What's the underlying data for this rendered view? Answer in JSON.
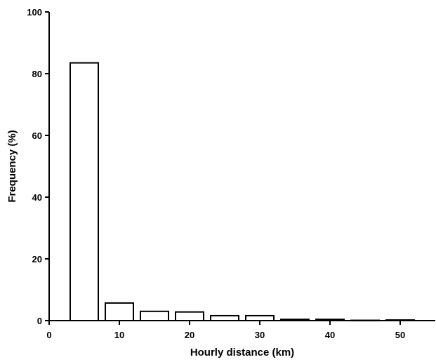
{
  "chart_data": {
    "type": "bar",
    "title": "",
    "xlabel": "Hourly distance (km)",
    "ylabel": "Frequency (%)",
    "x_centers": [
      5,
      10,
      15,
      20,
      25,
      30,
      35,
      40,
      45,
      50
    ],
    "values": [
      83.5,
      5.7,
      3.0,
      2.8,
      1.6,
      1.6,
      0.4,
      0.4,
      0.1,
      0.2
    ],
    "bar_width": 4,
    "xlim": [
      0,
      55
    ],
    "ylim": [
      0,
      100
    ],
    "xticks": [
      0,
      10,
      20,
      30,
      40,
      50
    ],
    "yticks": [
      0,
      20,
      40,
      60,
      80,
      100
    ],
    "grid": false,
    "legend": "none",
    "bar_fill": "#ffffff",
    "bar_stroke": "#000000"
  }
}
